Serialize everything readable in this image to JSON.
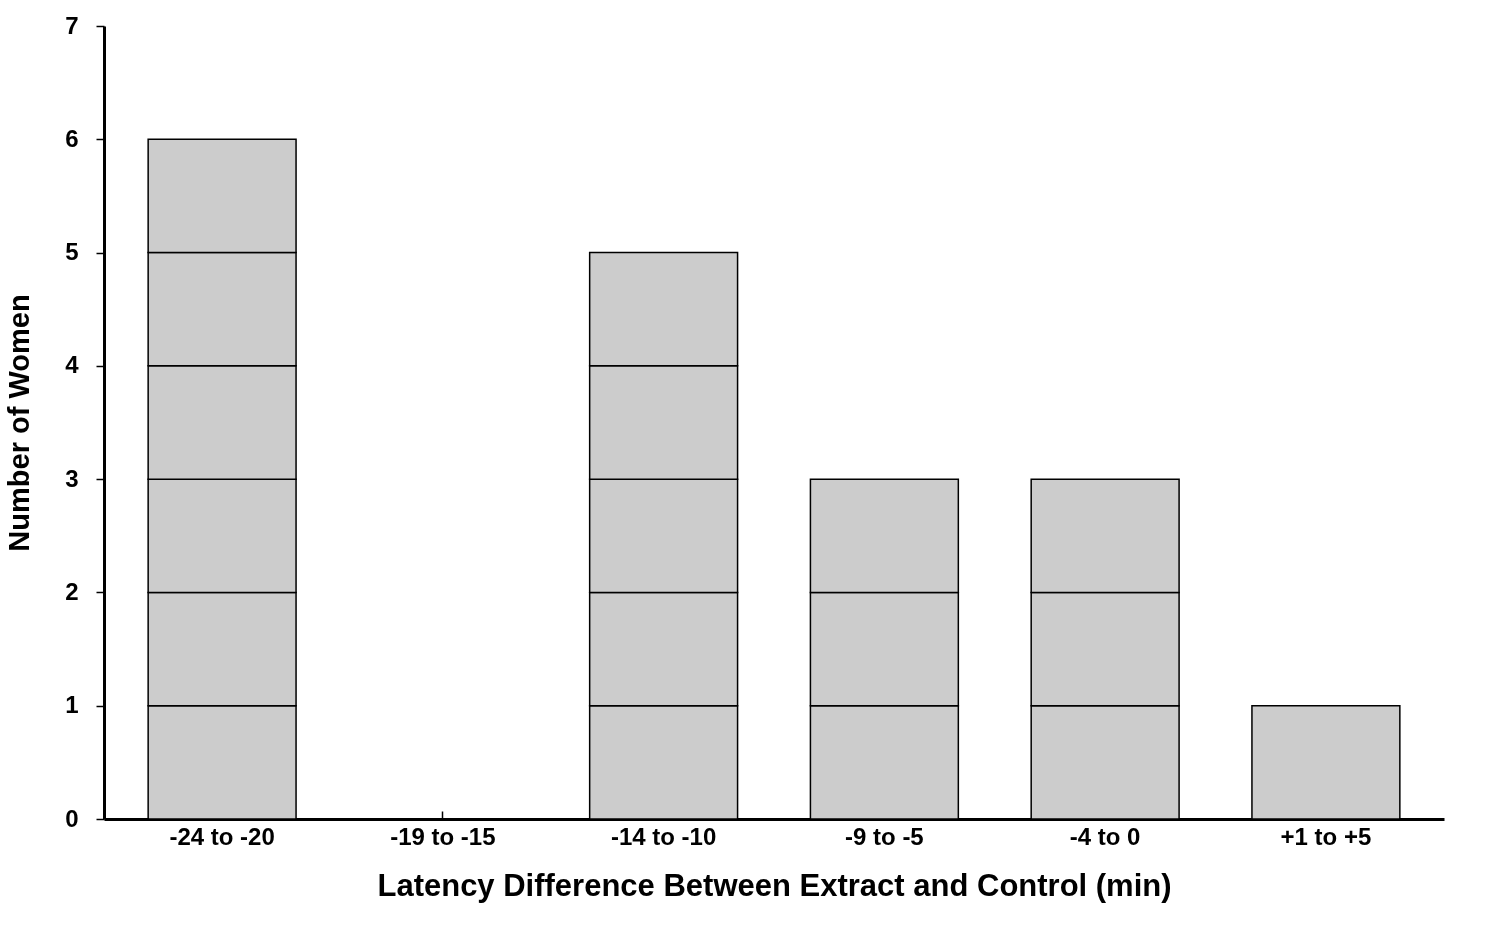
{
  "chart_data": {
    "type": "bar",
    "stacked": true,
    "xlabel": "Latency Difference Between Extract and Control (min)",
    "ylabel": "Number of Women",
    "categories": [
      "-24 to -20",
      "-19 to -15",
      "-14 to -10",
      "-9 to -5",
      "-4 to 0",
      "+1 to +5"
    ],
    "series": [
      {
        "color": "#cccccc",
        "values": [
          1,
          null,
          1,
          1,
          1,
          1
        ]
      },
      {
        "color": "#cccccc",
        "values": [
          1,
          null,
          1,
          1,
          1,
          null
        ]
      },
      {
        "color": "#cccccc",
        "values": [
          1,
          null,
          1,
          1,
          1,
          null
        ]
      },
      {
        "color": "#cccccc",
        "values": [
          1,
          null,
          1,
          null,
          null,
          null
        ]
      },
      {
        "color": "#cccccc",
        "values": [
          1,
          null,
          1,
          null,
          null,
          null
        ]
      },
      {
        "color": "#cccccc",
        "values": [
          1,
          null,
          null,
          null,
          null,
          null
        ]
      }
    ],
    "ylim": [
      0,
      7
    ],
    "yticks": [
      0,
      1,
      2,
      3,
      4,
      5,
      6,
      7
    ],
    "grid": false,
    "legend": false
  }
}
